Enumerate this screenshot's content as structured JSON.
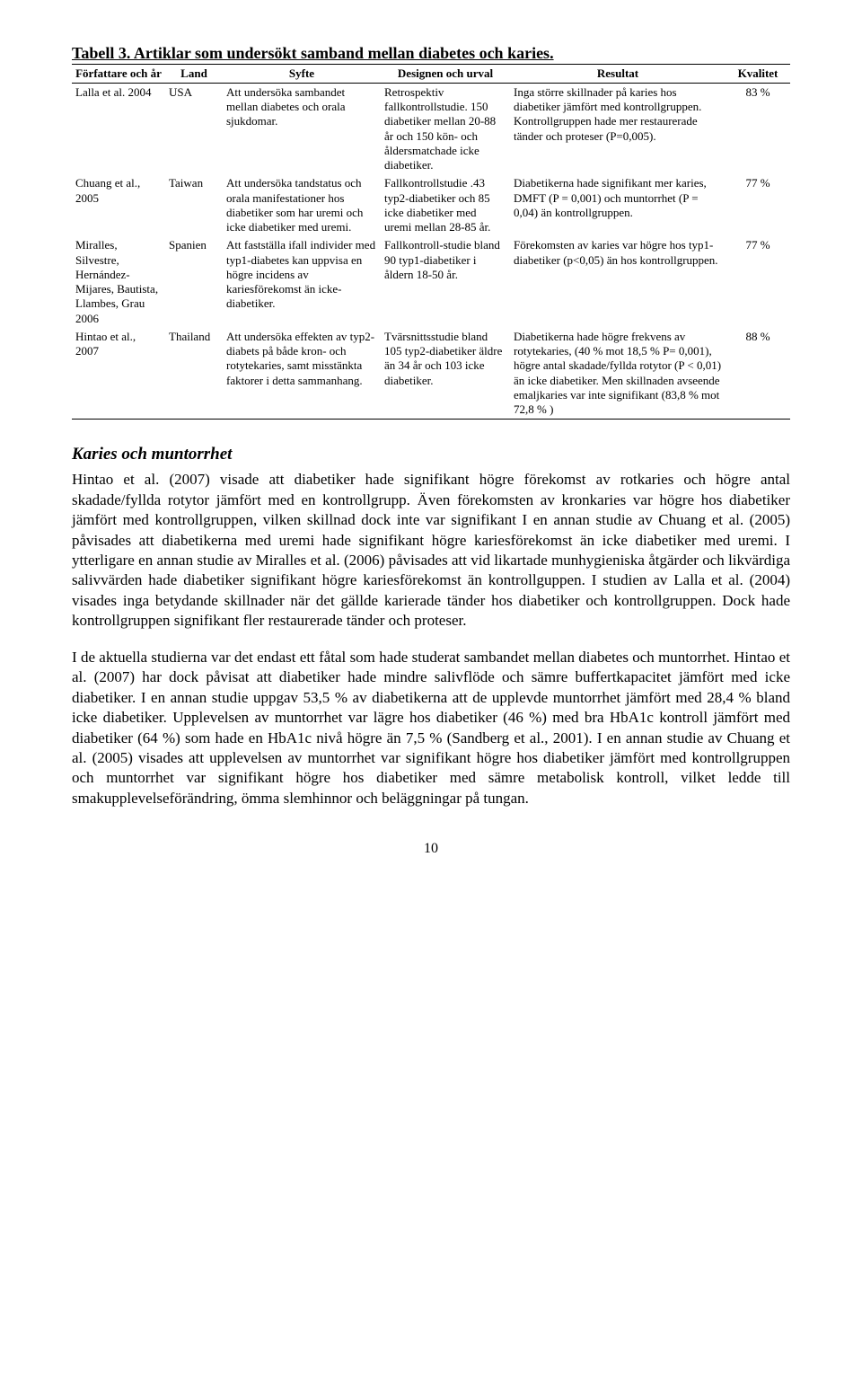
{
  "caption": "Tabell 3. Artiklar som undersökt samband mellan diabetes och karies.",
  "columns": [
    "Författare och år",
    "Land",
    "Syfte",
    "Designen och urval",
    "Resultat",
    "Kvalitet"
  ],
  "rows": [
    {
      "author": "Lalla et al. 2004",
      "land": "USA",
      "syfte": "Att undersöka sambandet mellan diabetes och orala sjukdomar.",
      "design": "Retrospektiv fallkontrollstudie. 150 diabetiker mellan 20-88 år och 150 kön- och åldersmatchade icke diabetiker.",
      "result": "Inga större skillnader på karies hos diabetiker jämfört med kontrollgruppen. Kontrollgruppen hade mer restaurerade tänder och proteser (P=0,005).",
      "kval": "83 %"
    },
    {
      "author": "Chuang et al., 2005",
      "land": "Taiwan",
      "syfte": "Att undersöka tandstatus och orala manifestationer hos diabetiker som har uremi och icke diabetiker med uremi.",
      "design": "Fallkontrollstudie .43 typ2-diabetiker och 85 icke diabetiker med uremi mellan 28-85 år.",
      "result": "Diabetikerna hade signifikant mer karies, DMFT (P = 0,001) och muntorrhet (P = 0,04) än kontrollgruppen.",
      "kval": "77 %"
    },
    {
      "author": "Miralles, Silvestre, Hernández-Mijares, Bautista, Llambes, Grau 2006",
      "land": "Spanien",
      "syfte": "Att fastställa ifall individer med typ1-diabetes kan uppvisa en högre incidens av kariesförekomst än icke-diabetiker.",
      "design": "Fallkontroll-studie bland 90 typ1-diabetiker i åldern 18-50 år.",
      "result": "Förekomsten av karies var högre hos typ1-diabetiker (p<0,05) än hos kontrollgruppen.",
      "kval": "77 %"
    },
    {
      "author": "Hintao et al., 2007",
      "land": "Thailand",
      "syfte": "Att undersöka effekten av typ2-diabets på både kron- och rotytekaries, samt misstänkta faktorer i detta sammanhang.",
      "design": "Tvärsnittsstudie bland 105 typ2-diabetiker äldre än 34 år och 103 icke diabetiker.",
      "result": "Diabetikerna hade högre frekvens av rotytekaries, (40 % mot 18,5 % P= 0,001), högre antal skadade/fyllda rotytor (P < 0,01) än icke diabetiker. Men skillnaden avseende emaljkaries var inte signifikant (83,8 % mot 72,8 % )",
      "kval": "88 %"
    }
  ],
  "section_heading": "Karies och muntorrhet",
  "para1": "Hintao et al. (2007) visade att diabetiker hade signifikant högre förekomst av rotkaries och högre antal skadade/fyllda rotytor jämfört med en kontrollgrupp. Även förekomsten av kronkaries var högre hos diabetiker jämfört med kontrollgruppen, vilken skillnad dock inte var signifikant I en annan studie av Chuang et al. (2005) påvisades att diabetikerna med uremi hade signifikant högre kariesförekomst än icke diabetiker med uremi.  I ytterligare en annan studie av Miralles et al. (2006) påvisades att vid likartade munhygieniska åtgärder och likvärdiga salivvärden hade diabetiker signifikant högre kariesförekomst än kontrollguppen. I studien av Lalla et al. (2004) visades inga betydande skillnader när det gällde karierade tänder hos diabetiker och kontrollgruppen. Dock hade kontrollgruppen signifikant fler restaurerade tänder och proteser.",
  "para2": "I de aktuella studierna var det endast ett fåtal som hade studerat sambandet mellan diabetes och muntorrhet. Hintao et al. (2007) har dock påvisat att diabetiker hade mindre salivflöde och sämre buffertkapacitet jämfört med icke diabetiker. I en annan studie uppgav 53,5 % av diabetikerna att de upplevde muntorrhet jämfört med 28,4 % bland icke diabetiker. Upplevelsen av muntorrhet var lägre hos diabetiker (46 %) med bra HbA1c kontroll jämfört med diabetiker (64 %) som hade en HbA1c nivå högre än 7,5 % (Sandberg et al., 2001). I en annan studie av Chuang et al. (2005) visades att upplevelsen av muntorrhet var signifikant högre hos diabetiker jämfört med kontrollgruppen och muntorrhet var signifikant högre hos diabetiker med sämre metabolisk kontroll, vilket ledde till smakupplevelseförändring, ömma slemhinnor och beläggningar på tungan.",
  "page_number": "10",
  "style": {
    "body_font_size_pt": 12,
    "table_font_size_pt": 9,
    "caption_font_size_pt": 12,
    "text_color": "#000000",
    "background_color": "#ffffff",
    "border_color": "#000000",
    "col_widths_pct": [
      13,
      8,
      22,
      18,
      30,
      9
    ]
  }
}
